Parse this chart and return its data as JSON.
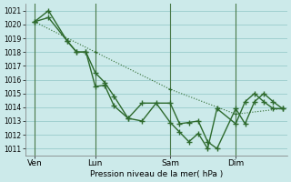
{
  "xlabel": "Pression niveau de la mer( hPa )",
  "background_color": "#cceaea",
  "grid_color": "#99cccc",
  "line_color": "#2d6a2d",
  "vline_color": "#4a7a4a",
  "ylim": [
    1010.5,
    1021.5
  ],
  "yticks": [
    1011,
    1012,
    1013,
    1014,
    1015,
    1016,
    1017,
    1018,
    1019,
    1020,
    1021
  ],
  "xlim": [
    0,
    28
  ],
  "day_labels": [
    "Ven",
    "Lun",
    "Sam",
    "Dim"
  ],
  "day_positions": [
    1.0,
    7.5,
    15.5,
    22.5
  ],
  "vline_positions": [
    1.0,
    7.5,
    15.5,
    22.5
  ],
  "series1_x": [
    1.0,
    2.5,
    4.5,
    5.5,
    6.5,
    7.5,
    8.5,
    9.5,
    11.0,
    12.5,
    15.5,
    16.5,
    17.5,
    18.5,
    19.5,
    20.5,
    22.5,
    23.5,
    24.5,
    25.5,
    26.5,
    27.5
  ],
  "series1_y": [
    1020.2,
    1021.0,
    1018.8,
    1018.0,
    1018.0,
    1016.5,
    1015.8,
    1014.8,
    1013.2,
    1014.3,
    1014.3,
    1012.8,
    1012.9,
    1013.0,
    1011.5,
    1011.0,
    1013.9,
    1012.8,
    1014.4,
    1015.0,
    1014.4,
    1013.9
  ],
  "series2_x": [
    1.0,
    2.5,
    4.5,
    5.5,
    6.5,
    7.5,
    8.5,
    9.5,
    11.0,
    12.5,
    14.0,
    15.5,
    16.5,
    17.5,
    18.5,
    19.5,
    20.5,
    22.5,
    23.5,
    24.5,
    25.5,
    26.5,
    27.5
  ],
  "series2_y": [
    1020.2,
    1020.5,
    1018.8,
    1018.0,
    1018.0,
    1015.5,
    1015.6,
    1014.1,
    1013.2,
    1013.0,
    1014.3,
    1012.9,
    1012.2,
    1011.5,
    1012.1,
    1011.0,
    1013.9,
    1012.8,
    1014.4,
    1015.0,
    1014.4,
    1013.9,
    1013.9
  ],
  "series3_x": [
    1.0,
    7.5,
    15.5,
    22.5,
    27.5
  ],
  "series3_y": [
    1020.2,
    1018.0,
    1015.3,
    1013.5,
    1013.9
  ]
}
